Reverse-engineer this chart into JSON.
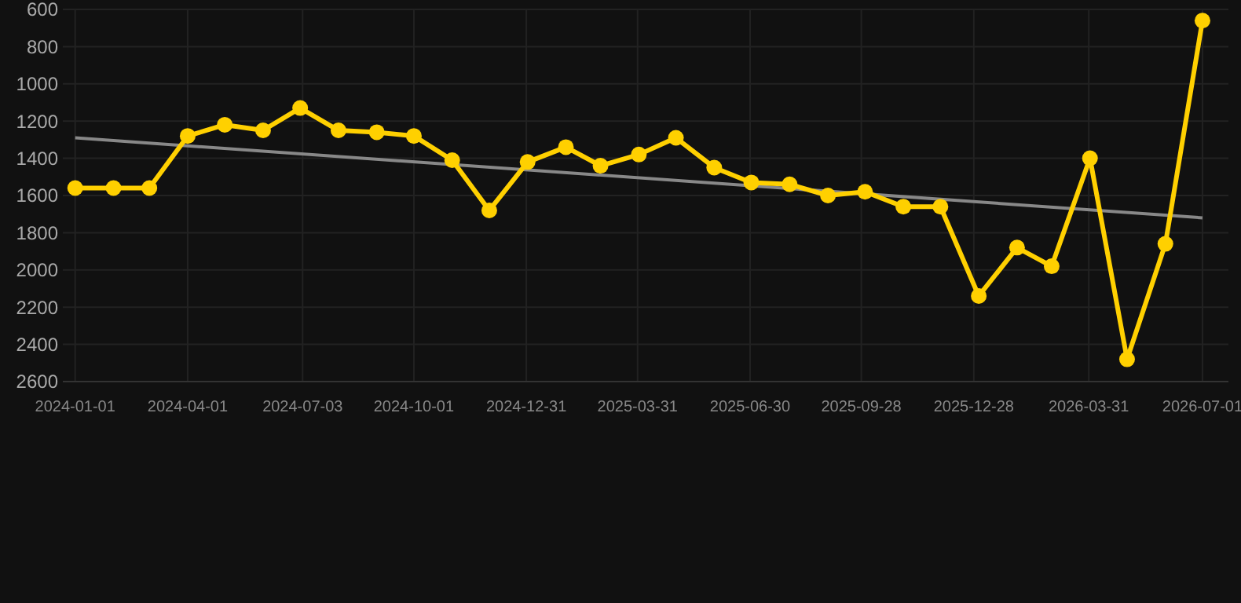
{
  "chart_data": {
    "type": "line",
    "x": [
      "2024-01-01",
      "2024-02-01",
      "2024-03-01",
      "2024-04-01",
      "2024-05-01",
      "2024-06-01",
      "2024-07-01",
      "2024-08-01",
      "2024-09-01",
      "2024-10-01",
      "2024-11-01",
      "2024-12-01",
      "2025-01-01",
      "2025-02-01",
      "2025-03-01",
      "2025-04-01",
      "2025-05-01",
      "2025-06-01",
      "2025-07-01",
      "2025-08-01",
      "2025-09-01",
      "2025-10-01",
      "2025-11-01",
      "2025-12-01",
      "2026-01-01",
      "2026-02-01",
      "2026-03-01",
      "2026-04-01",
      "2026-05-01",
      "2026-06-01",
      "2026-07-01"
    ],
    "series": [
      {
        "color": "#ffd000",
        "marker": "circle",
        "values": [
          1560,
          1560,
          1560,
          1280,
          1220,
          1250,
          1130,
          1250,
          1260,
          1280,
          1410,
          1680,
          1420,
          1340,
          1440,
          1380,
          1290,
          1450,
          1530,
          1540,
          1600,
          1580,
          1660,
          1660,
          2140,
          1880,
          1980,
          1400,
          2480,
          1860,
          660
        ]
      },
      {
        "color": "#888888",
        "marker": "none",
        "x": [
          "2024-01-01",
          "2026-07-01"
        ],
        "values": [
          1290,
          1720
        ]
      }
    ],
    "ylim": [
      2600,
      600
    ],
    "yticks": [
      600,
      800,
      1000,
      1200,
      1400,
      1600,
      1800,
      2000,
      2200,
      2400,
      2600
    ],
    "xlim": [
      "2023-12-22",
      "2026-07-22"
    ],
    "xticks": [
      {
        "value": "2024-01-01",
        "label": "2024-01-01"
      },
      {
        "value": "2024-04-01",
        "label": "2024-04-01"
      },
      {
        "value": "2024-07-03",
        "label": "2024-07-03"
      },
      {
        "value": "2024-10-01",
        "label": "2024-10-01"
      },
      {
        "value": "2024-12-31",
        "label": "2024-12-31"
      },
      {
        "value": "2025-03-31",
        "label": "2025-03-31"
      },
      {
        "value": "2025-06-30",
        "label": "2025-06-30"
      },
      {
        "value": "2025-09-28",
        "label": "2025-09-28"
      },
      {
        "value": "2025-12-28",
        "label": "2025-12-28"
      },
      {
        "value": "2026-03-31",
        "label": "2026-03-31"
      },
      {
        "value": "2026-07-01",
        "label": "2026-07-01"
      }
    ],
    "grid": true
  }
}
